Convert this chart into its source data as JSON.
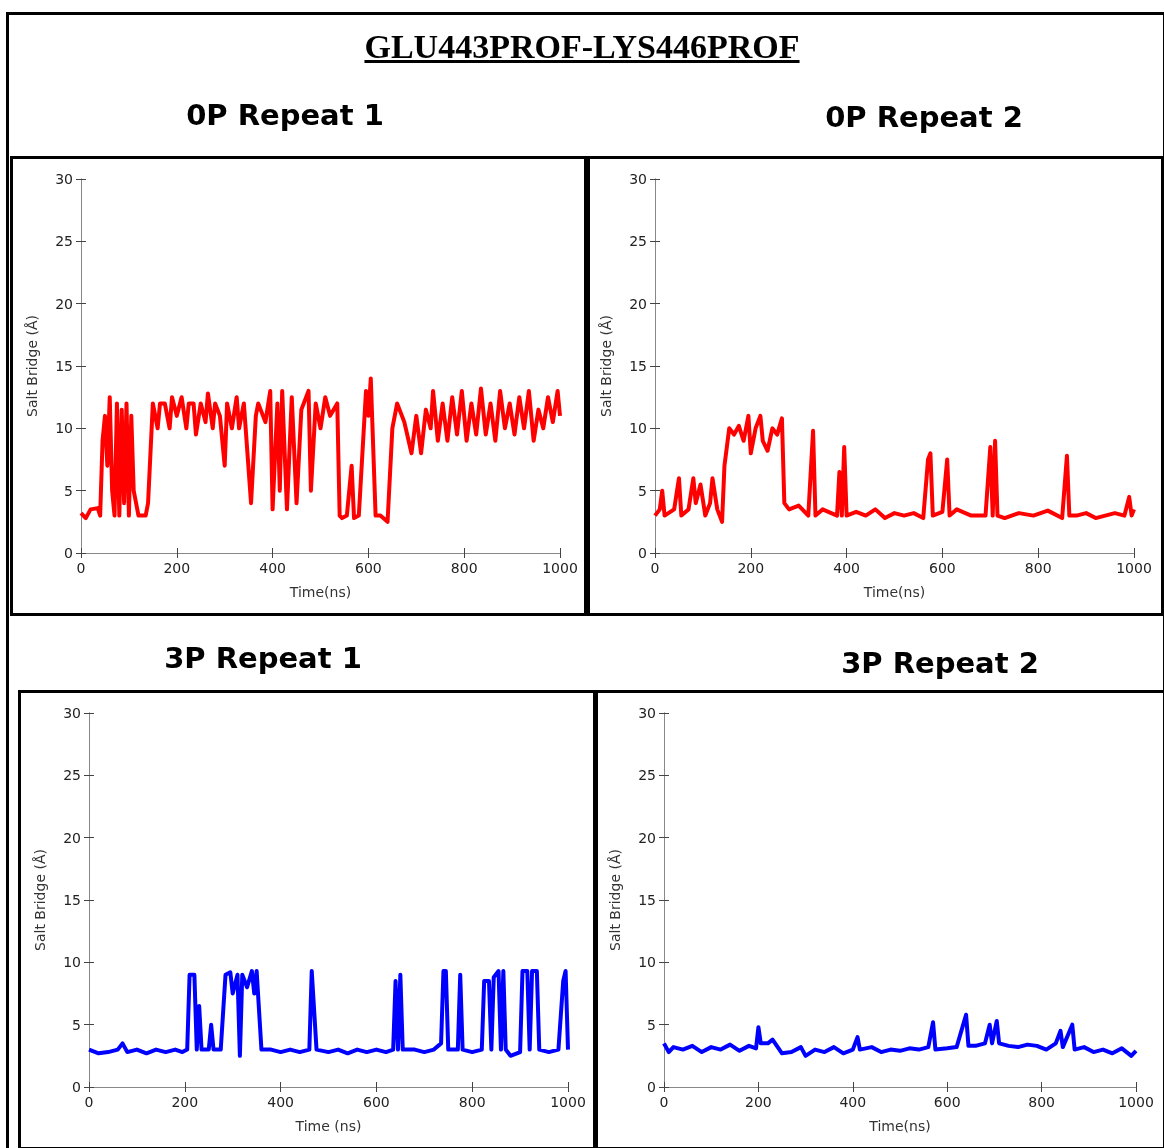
{
  "chart_data": [
    {
      "type": "other",
      "title": "GLU443PROF-LYS446PROF"
    },
    {
      "type": "line",
      "title": "0P Repeat 1",
      "xlabel": "Time(ns)",
      "ylabel": "Salt Bridge (Å)",
      "color": "#ff0000",
      "xlim": [
        0,
        1000
      ],
      "ylim": [
        0,
        30
      ],
      "xticks": [
        0,
        200,
        400,
        600,
        800,
        1000
      ],
      "yticks": [
        0,
        5,
        10,
        15,
        20,
        25,
        30
      ],
      "grid": false,
      "marker": "none",
      "line_style": "solid",
      "x": [
        0,
        10,
        20,
        35,
        40,
        45,
        50,
        55,
        60,
        65,
        70,
        75,
        80,
        85,
        90,
        95,
        100,
        105,
        110,
        120,
        125,
        135,
        140,
        150,
        160,
        165,
        175,
        185,
        190,
        200,
        210,
        220,
        225,
        235,
        240,
        250,
        260,
        265,
        275,
        280,
        290,
        300,
        305,
        315,
        325,
        330,
        340,
        355,
        365,
        370,
        385,
        395,
        400,
        410,
        415,
        420,
        430,
        440,
        450,
        460,
        475,
        480,
        490,
        500,
        510,
        520,
        535,
        540,
        545,
        555,
        565,
        570,
        580,
        595,
        600,
        605,
        615,
        625,
        640,
        650,
        660,
        675,
        690,
        700,
        710,
        720,
        730,
        735,
        745,
        755,
        765,
        775,
        785,
        795,
        805,
        815,
        825,
        835,
        845,
        855,
        865,
        875,
        885,
        895,
        905,
        915,
        925,
        935,
        945,
        955,
        965,
        975,
        985,
        995,
        1000
      ],
      "values": [
        3.2,
        2.8,
        3.5,
        3.6,
        3.0,
        9,
        11,
        7,
        12.5,
        5,
        3,
        12,
        3,
        11.5,
        4,
        12,
        3,
        11,
        5,
        3,
        3,
        3,
        4,
        12,
        10,
        12,
        12,
        10,
        12.5,
        11,
        12.5,
        10,
        12,
        12,
        9.5,
        12,
        10.5,
        12.8,
        10,
        12,
        11,
        7,
        12,
        10,
        12.5,
        10,
        12,
        4,
        11,
        12,
        10.5,
        13,
        3.5,
        12,
        5,
        13,
        3.5,
        12.5,
        4,
        11.5,
        13,
        5,
        12,
        10,
        12.5,
        11,
        12,
        3,
        2.8,
        3,
        7,
        2.8,
        3,
        13,
        11,
        14,
        3,
        3,
        2.5,
        10,
        12,
        10.5,
        8,
        11,
        8,
        11.5,
        10,
        13,
        9,
        12,
        9,
        12.5,
        9.5,
        13,
        9,
        12,
        9.5,
        13.2,
        9.5,
        12,
        9,
        13,
        10,
        12,
        9.5,
        12.5,
        10,
        13,
        9,
        11.5,
        10,
        12.5,
        10.5,
        13,
        11
      ]
    },
    {
      "type": "line",
      "title": "0P Repeat 2",
      "xlabel": "Time(ns)",
      "ylabel": "Salt Bridge (Å)",
      "color": "#ff0000",
      "xlim": [
        0,
        1000
      ],
      "ylim": [
        0,
        30
      ],
      "xticks": [
        0,
        200,
        400,
        600,
        800,
        1000
      ],
      "yticks": [
        0,
        5,
        10,
        15,
        20,
        25,
        30
      ],
      "grid": false,
      "marker": "none",
      "line_style": "solid",
      "x": [
        0,
        10,
        15,
        20,
        40,
        50,
        55,
        70,
        80,
        85,
        95,
        105,
        115,
        120,
        130,
        140,
        145,
        155,
        165,
        175,
        185,
        195,
        200,
        210,
        220,
        225,
        235,
        245,
        255,
        265,
        270,
        280,
        300,
        320,
        330,
        335,
        350,
        380,
        385,
        390,
        395,
        400,
        420,
        440,
        460,
        480,
        500,
        520,
        540,
        560,
        570,
        575,
        580,
        600,
        610,
        615,
        630,
        660,
        690,
        700,
        705,
        710,
        715,
        730,
        760,
        790,
        820,
        850,
        860,
        865,
        880,
        900,
        920,
        940,
        960,
        980,
        990,
        995,
        1000
      ],
      "values": [
        3,
        3.5,
        5,
        3,
        3.5,
        6,
        3,
        3.5,
        6,
        4,
        5.5,
        3,
        4,
        6,
        3.5,
        2.5,
        7,
        10,
        9.5,
        10.2,
        9,
        11,
        8,
        10,
        11,
        9,
        8.2,
        10,
        9.5,
        10.8,
        4,
        3.5,
        3.8,
        3,
        9.8,
        3,
        3.5,
        3,
        6.5,
        3,
        8.5,
        3,
        3.3,
        3,
        3.5,
        2.8,
        3.2,
        3,
        3.2,
        2.8,
        7.5,
        8,
        3,
        3.3,
        7.5,
        3,
        3.5,
        3,
        3,
        8.5,
        3,
        9,
        3,
        2.8,
        3.2,
        3,
        3.4,
        2.8,
        7.8,
        3,
        3,
        3.2,
        2.8,
        3,
        3.2,
        3,
        4.5,
        3,
        3.5
      ]
    },
    {
      "type": "line",
      "title": "3P Repeat 1",
      "xlabel": "Time (ns)",
      "ylabel": "Salt Bridge (Å)",
      "color": "#0000ff",
      "xlim": [
        0,
        1000
      ],
      "ylim": [
        0,
        30
      ],
      "xticks": [
        0,
        200,
        400,
        600,
        800,
        1000
      ],
      "yticks": [
        0,
        5,
        10,
        15,
        20,
        25,
        30
      ],
      "grid": false,
      "marker": "none",
      "line_style": "solid",
      "x": [
        0,
        20,
        40,
        60,
        70,
        80,
        100,
        120,
        140,
        160,
        180,
        195,
        205,
        210,
        220,
        225,
        230,
        235,
        250,
        255,
        260,
        275,
        285,
        295,
        300,
        310,
        315,
        320,
        330,
        340,
        345,
        350,
        360,
        380,
        400,
        420,
        440,
        460,
        465,
        475,
        500,
        520,
        540,
        560,
        580,
        600,
        620,
        635,
        640,
        645,
        650,
        655,
        680,
        700,
        720,
        735,
        740,
        745,
        750,
        770,
        775,
        780,
        800,
        820,
        825,
        835,
        840,
        845,
        855,
        860,
        865,
        870,
        880,
        900,
        905,
        915,
        920,
        925,
        935,
        940,
        960,
        980,
        990,
        995,
        1000
      ],
      "values": [
        3,
        2.7,
        2.8,
        3,
        3.5,
        2.8,
        3,
        2.7,
        3,
        2.8,
        3,
        2.8,
        3,
        9,
        9,
        3,
        6.5,
        3,
        3,
        5,
        3,
        3,
        9,
        9.2,
        7.5,
        9,
        2.5,
        9,
        8,
        9.3,
        7.5,
        9.3,
        3,
        3,
        2.8,
        3,
        2.8,
        3,
        9.3,
        3,
        2.8,
        3,
        2.7,
        3,
        2.8,
        3,
        2.8,
        3,
        8.5,
        3,
        9,
        3,
        3,
        2.8,
        3,
        3.5,
        9.3,
        9.3,
        3,
        3,
        9,
        3,
        2.8,
        3,
        8.5,
        8.5,
        3,
        8.8,
        9.3,
        3,
        9.3,
        3,
        2.5,
        2.8,
        9.3,
        9.3,
        3,
        9.3,
        9.3,
        3,
        2.8,
        3,
        8.5,
        9.3,
        3
      ]
    },
    {
      "type": "line",
      "title": "3P Repeat 2",
      "xlabel": "Time(ns)",
      "ylabel": "Salt Bridge (Å)",
      "color": "#0000ff",
      "xlim": [
        0,
        1000
      ],
      "ylim": [
        0,
        30
      ],
      "xticks": [
        0,
        200,
        400,
        600,
        800,
        1000
      ],
      "yticks": [
        0,
        5,
        10,
        15,
        20,
        25,
        30
      ],
      "grid": false,
      "marker": "none",
      "line_style": "solid",
      "x": [
        0,
        10,
        20,
        40,
        60,
        80,
        100,
        120,
        140,
        160,
        180,
        195,
        200,
        205,
        220,
        230,
        250,
        270,
        290,
        300,
        320,
        340,
        360,
        380,
        400,
        410,
        415,
        440,
        460,
        480,
        500,
        520,
        540,
        560,
        570,
        575,
        600,
        620,
        640,
        645,
        660,
        680,
        690,
        695,
        705,
        710,
        730,
        750,
        770,
        790,
        810,
        830,
        840,
        845,
        865,
        870,
        890,
        910,
        930,
        950,
        970,
        990,
        1000
      ],
      "values": [
        3.5,
        2.8,
        3.2,
        3,
        3.3,
        2.8,
        3.2,
        3,
        3.4,
        2.9,
        3.3,
        3.1,
        4.8,
        3.5,
        3.5,
        3.8,
        2.7,
        2.8,
        3.2,
        2.5,
        3,
        2.8,
        3.2,
        2.7,
        3,
        4,
        3,
        3.2,
        2.8,
        3,
        2.9,
        3.1,
        3,
        3.2,
        5.2,
        3,
        3.1,
        3.2,
        5.8,
        3.3,
        3.3,
        3.5,
        5,
        3.5,
        5.3,
        3.5,
        3.3,
        3.2,
        3.4,
        3.3,
        3,
        3.5,
        4.5,
        3.2,
        5,
        3,
        3.2,
        2.8,
        3,
        2.7,
        3.1,
        2.5,
        2.9
      ]
    }
  ]
}
